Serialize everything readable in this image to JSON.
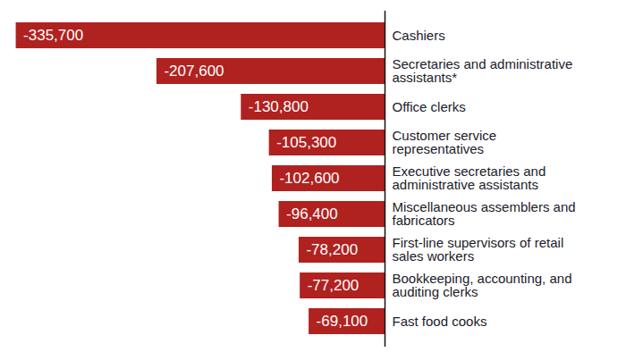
{
  "chart_data": {
    "type": "bar",
    "orientation": "horizontal",
    "categories": [
      "Cashiers",
      "Secretaries and administrative assistants*",
      "Office clerks",
      "Customer service representatives",
      "Executive secretaries and administrative assistants",
      "Miscellaneous assemblers and fabricators",
      "First-line supervisors of retail sales workers",
      "Bookkeeping, accounting, and auditing clerks",
      "Fast food cooks"
    ],
    "values": [
      -335700,
      -207600,
      -130800,
      -105300,
      -102600,
      -96400,
      -78200,
      -77200,
      -69100
    ],
    "value_labels": [
      "-335,700",
      "-207,600",
      "-130,800",
      "-105,300",
      "-102,600",
      "-96,400",
      "-78,200",
      "-77,200",
      "-69,100"
    ],
    "data_labels": true,
    "color": "#b0221f",
    "xlim": [
      -350000,
      0
    ],
    "tick_labels": "y",
    "grid": false
  }
}
